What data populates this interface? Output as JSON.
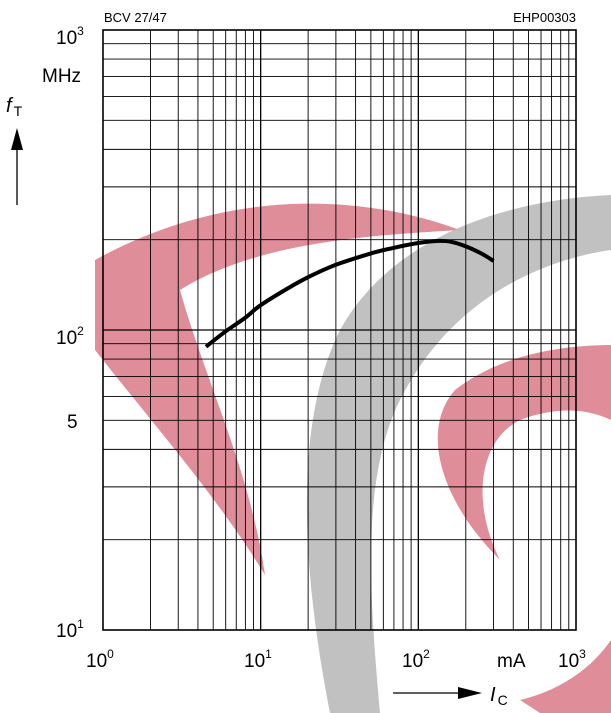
{
  "chart_data": {
    "type": "line",
    "title": "",
    "header_left": "BCV 27/47",
    "header_right": "EHP00303",
    "x_scale": "log",
    "y_scale": "log",
    "xlim": [
      1,
      1000
    ],
    "ylim": [
      10,
      1000
    ],
    "grid": true,
    "x_ticks": [
      {
        "base": "10",
        "exp": "0"
      },
      {
        "base": "10",
        "exp": "1"
      },
      {
        "base": "10",
        "exp": "2"
      },
      {
        "base": "10",
        "exp": "3"
      }
    ],
    "x_unit": "mA",
    "y_ticks": [
      {
        "base": "10",
        "exp": "1"
      },
      {
        "base": "10",
        "exp": "2"
      },
      {
        "base": "10",
        "exp": "3"
      }
    ],
    "y_minor_label": "5",
    "y_unit": "MHz",
    "ylabel": {
      "main": "f",
      "sub": "T"
    },
    "xlabel": {
      "main": "I",
      "sub": "C"
    },
    "series": [
      {
        "x": [
          4.5,
          6,
          8,
          10,
          15,
          20,
          30,
          50,
          70,
          100,
          130,
          160,
          200,
          250,
          300
        ],
        "y": [
          88,
          99,
          110,
          121,
          138,
          150,
          165,
          180,
          188,
          195,
          198,
          197,
          190,
          180,
          170
        ]
      }
    ],
    "colors": {
      "curve": "#000000",
      "grid": "#000000",
      "watermark_red": "#d66a7a",
      "watermark_gray": "#b3b3b3"
    }
  }
}
